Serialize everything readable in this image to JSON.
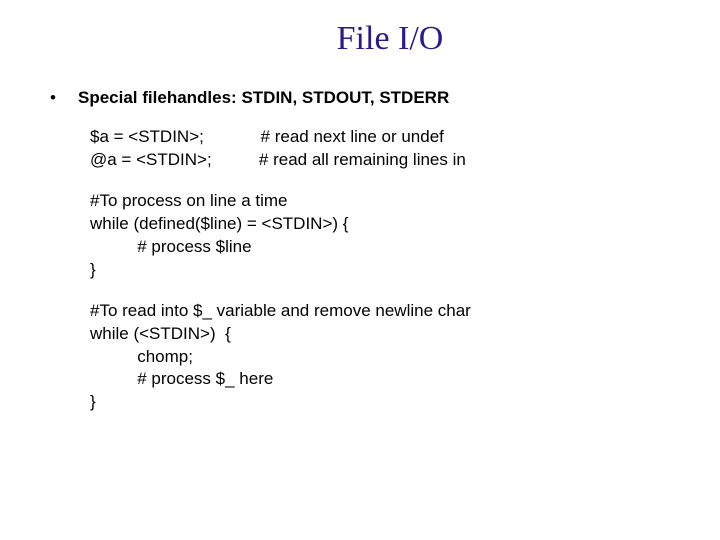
{
  "title": {
    "text": "File I/O",
    "color": "#2a1a8a",
    "fontsize": 34
  },
  "content": {
    "fontsize": 17,
    "color": "#000000",
    "bullet_glyph": "•",
    "heading": "Special filehandles: STDIN, STDOUT, STDERR",
    "block1": "$a = <STDIN>;            # read next line or undef\n@a = <STDIN>;          # read all remaining lines in",
    "block2": "#To process on line a time\nwhile (defined($line) = <STDIN>) {\n          # process $line\n}",
    "block3": "#To read into $_ variable and remove newline char\nwhile (<STDIN>)  {\n          chomp;\n          # process $_ here\n}"
  },
  "background_color": "#ffffff"
}
